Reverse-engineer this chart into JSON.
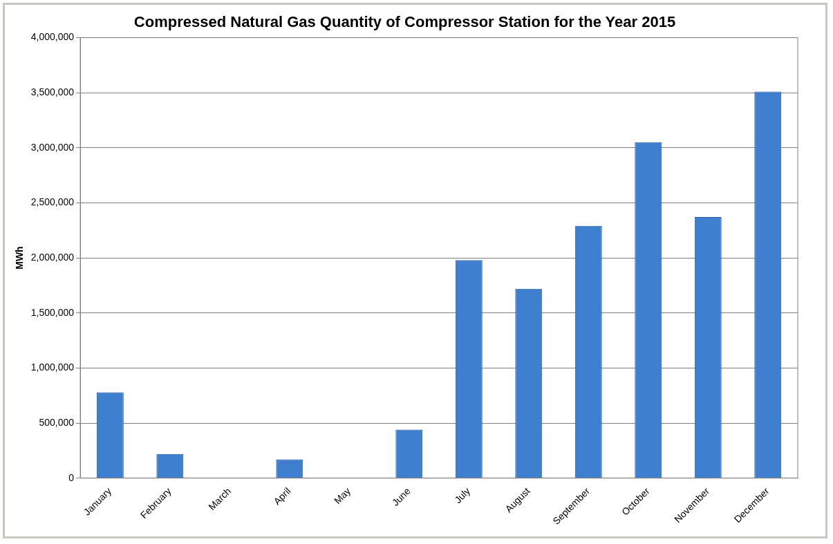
{
  "chart_data": {
    "type": "bar",
    "title": "Compressed Natural Gas Quantity of Compressor Station for the Year 2015",
    "ylabel": "MWh",
    "categories": [
      "January",
      "February",
      "March",
      "April",
      "May",
      "June",
      "July",
      "August",
      "September",
      "October",
      "November",
      "December"
    ],
    "values": [
      780000,
      220000,
      0,
      170000,
      0,
      440000,
      1980000,
      1720000,
      2290000,
      3050000,
      2370000,
      3510000
    ],
    "color": "#3f7fcf",
    "ylim": [
      0,
      4000000
    ],
    "yticks": [
      {
        "value": 0,
        "label": "0"
      },
      {
        "value": 500000,
        "label": "500,000"
      },
      {
        "value": 1000000,
        "label": "1,000,000"
      },
      {
        "value": 1500000,
        "label": "1,500,000"
      },
      {
        "value": 2000000,
        "label": "2,000,000"
      },
      {
        "value": 2500000,
        "label": "2,500,000"
      },
      {
        "value": 3000000,
        "label": "3,000,000"
      },
      {
        "value": 3500000,
        "label": "3,500,000"
      },
      {
        "value": 4000000,
        "label": "4,000,000"
      }
    ],
    "grid": "y",
    "legend": false
  }
}
